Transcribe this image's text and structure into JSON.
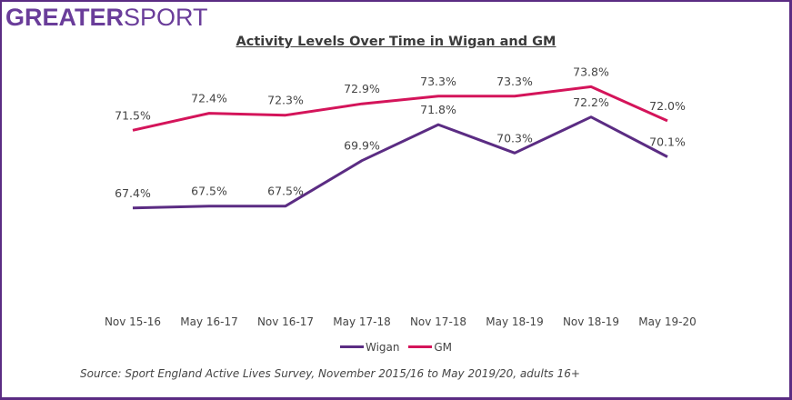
{
  "logo": {
    "bold": "GREATER",
    "light": "SPORT"
  },
  "colors": {
    "wigan": "#5b2c83",
    "gm": "#d4145a",
    "frame": "#5b2c83"
  },
  "source": "Source: Sport England Active Lives Survey, November 2015/16 to May 2019/20, adults 16+",
  "chart_data": {
    "type": "line",
    "title": "Activity Levels Over Time in Wigan and GM",
    "xlabel": "",
    "ylabel": "",
    "categories": [
      "Nov 15-16",
      "May 16-17",
      "Nov 16-17",
      "May 17-18",
      "Nov 17-18",
      "May 18-19",
      "Nov 18-19",
      "May 19-20"
    ],
    "series": [
      {
        "name": "Wigan",
        "values": [
          67.4,
          67.5,
          67.5,
          69.9,
          71.8,
          70.3,
          72.2,
          70.1
        ],
        "labels": [
          "67.4%",
          "67.5%",
          "67.5%",
          "69.9%",
          "71.8%",
          "70.3%",
          "72.2%",
          "70.1%"
        ]
      },
      {
        "name": "GM",
        "values": [
          71.5,
          72.4,
          72.3,
          72.9,
          73.3,
          73.3,
          73.8,
          72.0
        ],
        "labels": [
          "71.5%",
          "72.4%",
          "72.3%",
          "72.9%",
          "73.3%",
          "73.3%",
          "73.8%",
          "72.0%"
        ]
      }
    ],
    "ylim": [
      62.3,
      75.5
    ],
    "grid": false,
    "legend": "bottom-center",
    "y_axis_visible": false
  }
}
